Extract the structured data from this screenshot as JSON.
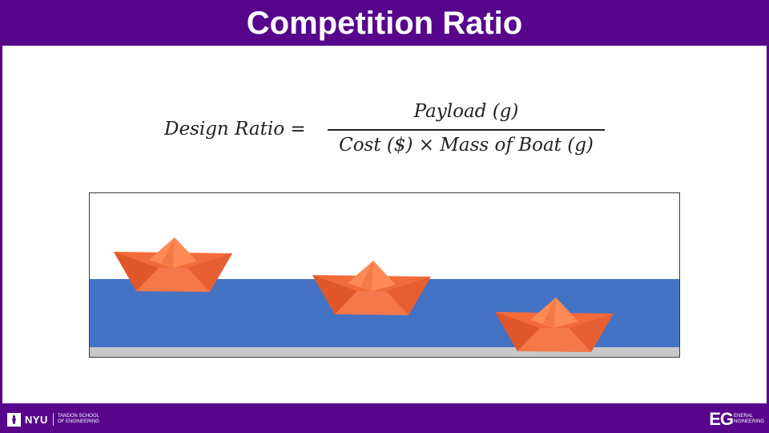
{
  "slide": {
    "title": "Competition Ratio"
  },
  "formula": {
    "lhs": "Design Ratio =",
    "numerator": "Payload (g)",
    "denominator": "Cost ($) × Mass of Boat (g)"
  },
  "footer": {
    "left_logo_text": "NYU",
    "left_logo_subtext_line1": "TANDON SCHOOL",
    "left_logo_subtext_line2": "OF ENGINEERING",
    "right_logo_mark": "EG",
    "right_logo_word1": "ENERAL",
    "right_logo_word2": "NGINEERING"
  },
  "colors": {
    "brand_purple": "#57068c",
    "water": "#4472c4",
    "floor": "#c8c8c8",
    "boat": "#f26b3a"
  },
  "icons": [
    "nyu-torch-icon",
    "paper-boat-icon"
  ]
}
